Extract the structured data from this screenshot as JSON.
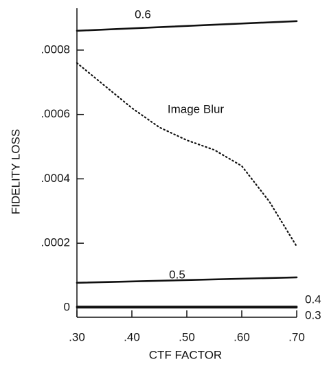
{
  "chart_data": {
    "type": "line",
    "x_label": "CTF FACTOR",
    "y_label": "FIDELITY LOSS",
    "xlim": [
      0.3,
      0.705
    ],
    "ylim": [
      -3e-05,
      0.00093
    ],
    "xticks": [
      {
        "value": 0.3,
        "label": ".30"
      },
      {
        "value": 0.4,
        "label": ".40"
      },
      {
        "value": 0.5,
        "label": ".50"
      },
      {
        "value": 0.6,
        "label": ".60"
      },
      {
        "value": 0.7,
        "label": ".70"
      }
    ],
    "yticks": [
      0,
      {
        "value": 0.0002,
        "label": ".0002"
      },
      {
        "value": 0.0004,
        "label": ".0004"
      },
      {
        "value": 0.0006,
        "label": ".0006"
      },
      {
        "value": 0.0008,
        "label": ".0008"
      }
    ],
    "series": [
      {
        "name": "0.6",
        "color": "#111111",
        "style": "solid",
        "x": [
          0.3,
          0.7
        ],
        "values": [
          0.00086,
          0.00089
        ]
      },
      {
        "name": "Image Blur",
        "color": "#111111",
        "style": "dotted",
        "x": [
          0.3,
          0.35,
          0.4,
          0.45,
          0.5,
          0.55,
          0.6,
          0.65,
          0.7
        ],
        "values": [
          0.00076,
          0.00069,
          0.00062,
          0.00056,
          0.00052,
          0.00049,
          0.00044,
          0.00033,
          0.00019
        ]
      },
      {
        "name": "0.5",
        "color": "#111111",
        "style": "solid",
        "x": [
          0.3,
          0.7
        ],
        "values": [
          7.7e-05,
          9.4e-05
        ]
      },
      {
        "name": "0.4",
        "color": "#111111",
        "style": "solid",
        "x": [
          0.3,
          0.7
        ],
        "values": [
          3e-06,
          3e-06
        ]
      },
      {
        "name": "0.3",
        "color": "#111111",
        "style": "solid",
        "x": [
          0.3,
          0.7
        ],
        "values": [
          0,
          0
        ]
      }
    ]
  }
}
